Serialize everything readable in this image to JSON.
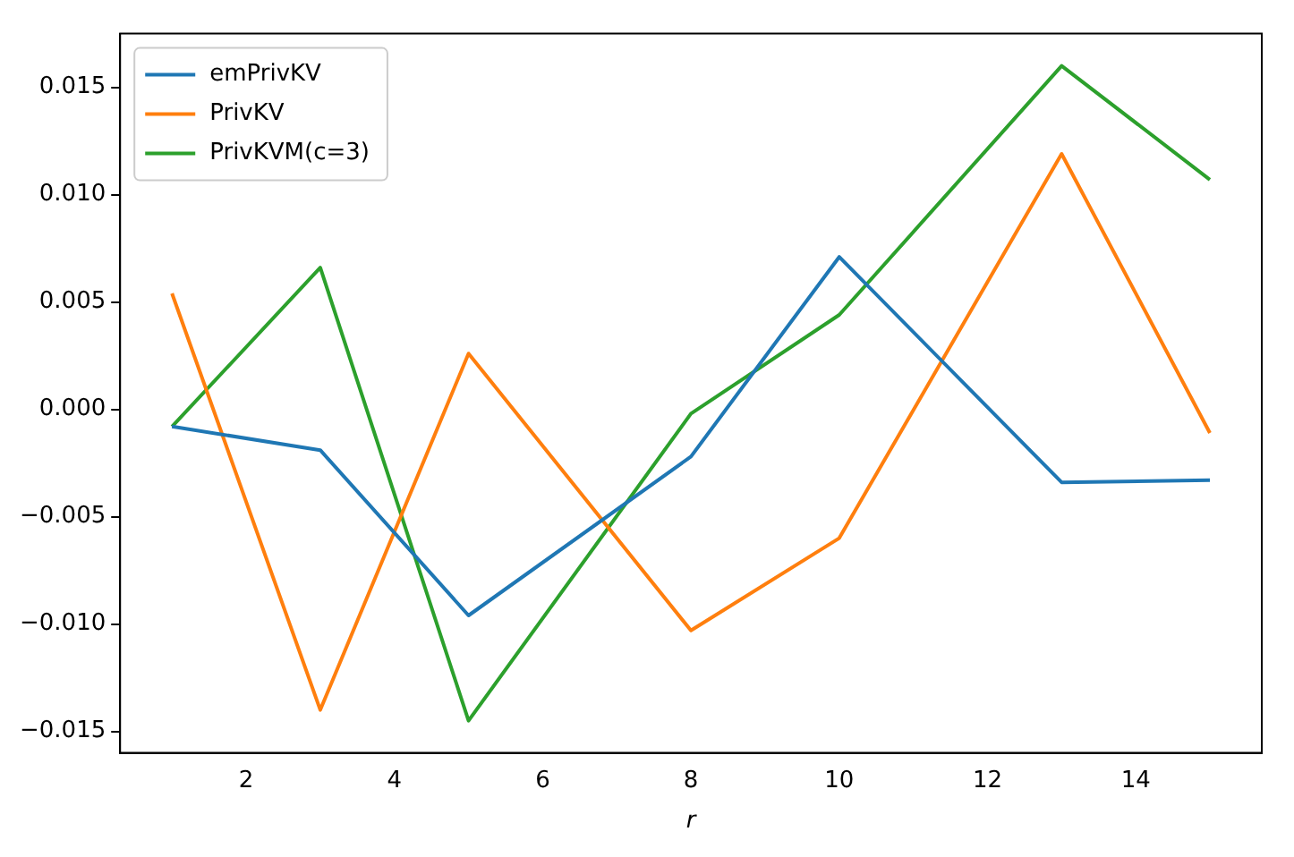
{
  "chart_data": {
    "type": "line",
    "xlabel": "r",
    "x": [
      1,
      3,
      5,
      8,
      10,
      13,
      15
    ],
    "series": [
      {
        "name": "emPrivKV",
        "color": "#1f77b4",
        "values": [
          -0.0008,
          -0.0019,
          -0.0096,
          -0.0022,
          0.0071,
          -0.0034,
          -0.0033
        ]
      },
      {
        "name": "PrivKV",
        "color": "#ff7f0e",
        "values": [
          0.0054,
          -0.014,
          0.0026,
          -0.0103,
          -0.006,
          0.0119,
          -0.0011
        ]
      },
      {
        "name": "PrivKVM(c=3)",
        "color": "#2ca02c",
        "values": [
          -0.0008,
          0.0066,
          -0.0145,
          -0.0002,
          0.0044,
          0.016,
          0.0107
        ]
      }
    ],
    "xlim": [
      0.3,
      15.7
    ],
    "xticks": [
      2,
      4,
      6,
      8,
      10,
      12,
      14
    ],
    "ylim": [
      -0.016,
      0.0175
    ],
    "yticks": [
      {
        "value": -0.015,
        "label": "−0.015"
      },
      {
        "value": -0.01,
        "label": "−0.010"
      },
      {
        "value": -0.005,
        "label": "−0.005"
      },
      {
        "value": 0,
        "label": "0.000"
      },
      {
        "value": 0.005,
        "label": "0.005"
      },
      {
        "value": 0.01,
        "label": "0.010"
      },
      {
        "value": 0.015,
        "label": "0.015"
      }
    ],
    "grid": false,
    "legend": "top left",
    "marker": "none",
    "line_style": "solid"
  }
}
